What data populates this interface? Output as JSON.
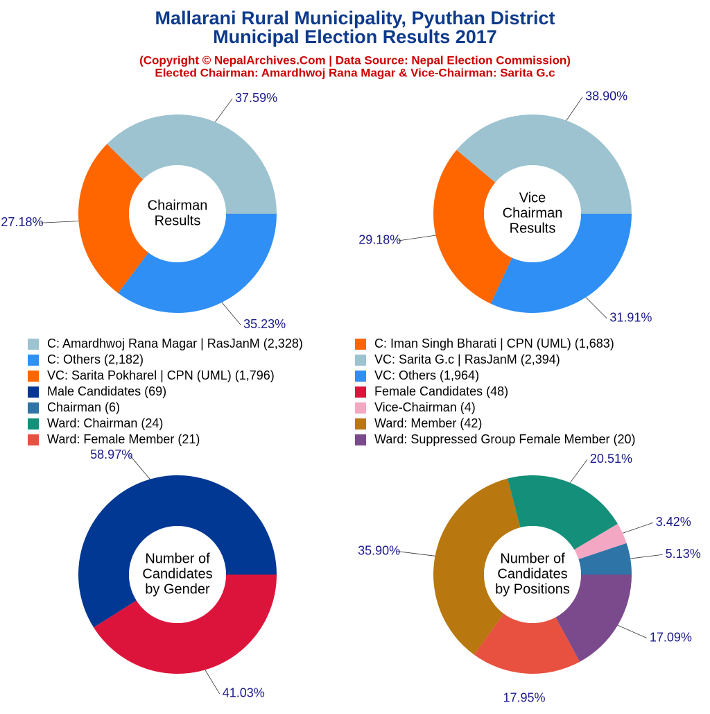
{
  "header": {
    "title": [
      "Mallarani Rural Municipality, Pyuthan District",
      "Municipal Election Results 2017"
    ],
    "subtitle": [
      "(Copyright © NepalArchives.Com | Data Source: Nepal Election Commission)",
      "Elected Chairman: Amardhwoj Rana Magar & Vice-Chairman: Sarita G.c"
    ]
  },
  "chart_data": [
    {
      "type": "donut",
      "center_label": [
        "Chairman",
        "Results"
      ],
      "categories": [
        "C: Amardhwoj Rana Magar | RasJanM (2,328)",
        "C: Iman Singh Bharati | CPN (UML) (1,683)",
        "C: Others (2,182)"
      ],
      "values": [
        37.59,
        27.18,
        35.23
      ],
      "value_labels": [
        "37.59%",
        "27.18%",
        "35.23%"
      ],
      "colors": [
        "#9dc3d0",
        "#ff6600",
        "#2f8ff5"
      ]
    },
    {
      "type": "donut",
      "center_label": [
        "Vice",
        "Chairman",
        "Results"
      ],
      "categories": [
        "VC: Sarita G.c | RasJanM (2,394)",
        "VC: Sarita Pokharel | CPN (UML) (1,796)",
        "VC: Others (1,964)"
      ],
      "values": [
        38.9,
        29.18,
        31.91
      ],
      "value_labels": [
        "38.90%",
        "29.18%",
        "31.91%"
      ],
      "colors": [
        "#9dc3d0",
        "#ff6600",
        "#2f8ff5"
      ]
    },
    {
      "type": "donut",
      "center_label": [
        "Number of",
        "Candidates",
        "by Gender"
      ],
      "categories": [
        "Male Candidates (69)",
        "Female Candidates (48)"
      ],
      "values": [
        58.97,
        41.03
      ],
      "value_labels": [
        "58.97%",
        "41.03%"
      ],
      "colors": [
        "#003893",
        "#dc143c"
      ]
    },
    {
      "type": "donut",
      "center_label": [
        "Number of",
        "Candidates",
        "by Positions"
      ],
      "categories": [
        "Chairman (6)",
        "Vice-Chairman (4)",
        "Ward: Chairman (24)",
        "Ward: Member (42)",
        "Ward: Female Member (21)",
        "Ward: Suppressed Group Female Member (20)"
      ],
      "values": [
        5.13,
        3.42,
        20.51,
        35.9,
        17.95,
        17.09
      ],
      "value_labels": [
        "5.13%",
        "3.42%",
        "20.51%",
        "35.90%",
        "17.95%",
        "17.09%"
      ],
      "colors": [
        "#2e74a6",
        "#f4a7c2",
        "#14907a",
        "#b8780f",
        "#e8513f",
        "#7a4a8c"
      ]
    }
  ]
}
